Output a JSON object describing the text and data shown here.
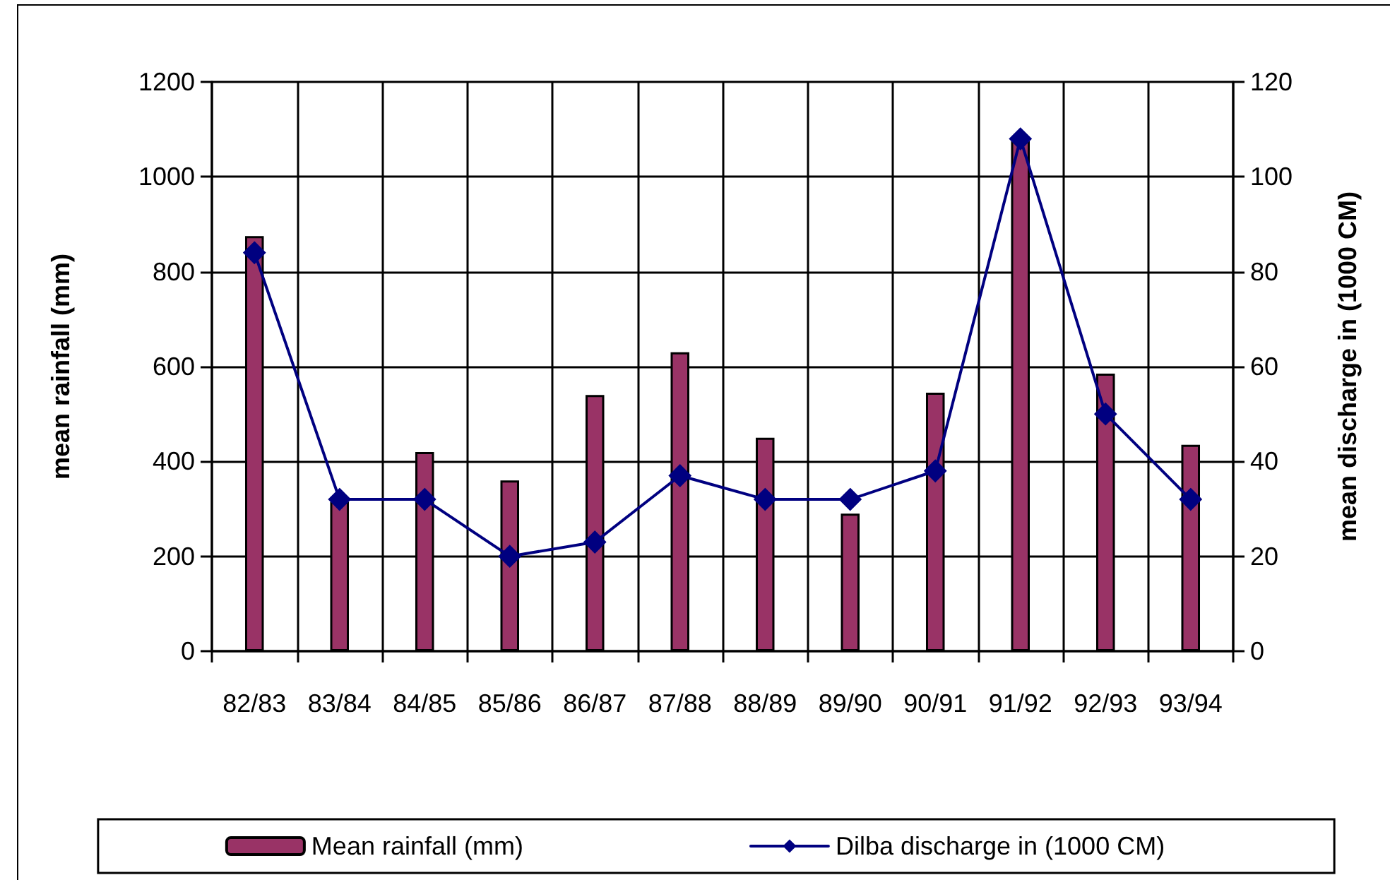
{
  "chart_data": {
    "type": "bar",
    "categories": [
      "82/83",
      "83/84",
      "84/85",
      "85/86",
      "86/87",
      "87/88",
      "88/89",
      "89/90",
      "90/91",
      "91/92",
      "92/93",
      "93/94"
    ],
    "ylabel": "mean rainfall (mm)",
    "y2label": "mean discharge in (1000 CM)",
    "series": [
      {
        "name": "Mean rainfall (mm)",
        "color": "#993366",
        "values": [
          875,
          315,
          420,
          360,
          540,
          630,
          450,
          290,
          545,
          1075,
          585,
          435
        ]
      },
      {
        "name": "Dilba discharge in (1000 CM)",
        "type": "line",
        "axis": "y2",
        "color": "#000080",
        "values": [
          84,
          32,
          32,
          20,
          23,
          37,
          32,
          32,
          38,
          108,
          50,
          32
        ]
      }
    ],
    "ylim": [
      0,
      1200
    ],
    "yticks": [
      0,
      200,
      400,
      600,
      800,
      1000,
      1200
    ],
    "y2lim": [
      0,
      120
    ],
    "y2ticks": [
      0,
      20,
      40,
      60,
      80,
      100,
      120
    ],
    "marker": "diamond",
    "line_style": "solid",
    "grid": true,
    "legend": "bottom"
  }
}
